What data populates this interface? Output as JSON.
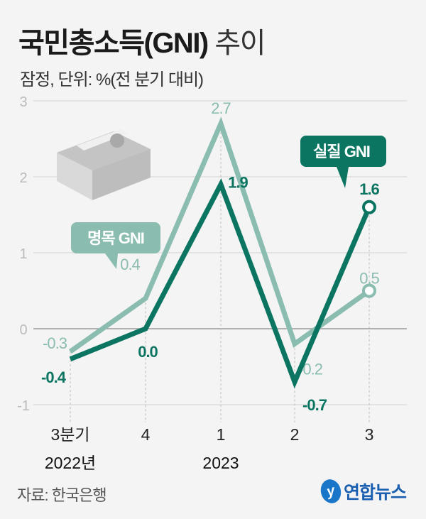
{
  "header": {
    "title_bold": "국민총소득(GNI)",
    "title_light": "추이",
    "subtitle": "잠정, 단위: %(전 분기 대비)"
  },
  "footer": {
    "source": "자료: 한국은행",
    "logo_text": "연합뉴스"
  },
  "colors": {
    "real": "#0b7561",
    "nominal": "#8abcb0",
    "background": "#f4f4f4"
  },
  "chart_data": {
    "type": "line",
    "title": "국민총소득(GNI) 추이",
    "subtitle": "잠정, 단위: %(전 분기 대비)",
    "categories": [
      "3분기",
      "4",
      "1",
      "2",
      "3"
    ],
    "year_labels": [
      "2022년",
      "",
      "2023",
      "",
      ""
    ],
    "ylim": [
      -1,
      3
    ],
    "yticks": [
      "3",
      "2",
      "1",
      "0",
      "-1"
    ],
    "grid": true,
    "series": [
      {
        "name": "명목 GNI",
        "values": [
          -0.3,
          0.4,
          2.7,
          -0.2,
          0.5
        ],
        "labels": [
          "-0.3",
          "0.4",
          "2.7",
          "-0.2",
          "0.5"
        ]
      },
      {
        "name": "실질 GNI",
        "values": [
          -0.4,
          0.0,
          1.9,
          -0.7,
          1.6
        ],
        "labels": [
          "-0.4",
          "0.0",
          "1.9",
          "-0.7",
          "1.6"
        ]
      }
    ]
  }
}
